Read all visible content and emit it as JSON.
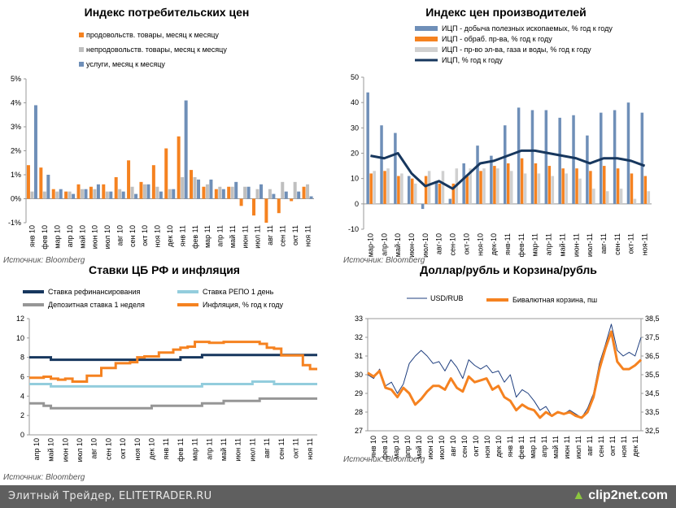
{
  "footer": {
    "left_text": "Элитный Трейдер, ELITETRADER.RU",
    "logo_text": "clip2net.com",
    "logo_icon": "green-up-arrow-icon"
  },
  "colors": {
    "blue": "#4f81bd",
    "steel": "#6f8fb8",
    "orange": "#f58220",
    "gray": "#bfbfbf",
    "navy": "#17375e",
    "lightblue": "#93cddd",
    "darkgray": "#969696",
    "navyline": "#1f3f7f"
  },
  "chart_data": [
    {
      "id": "cpi",
      "type": "bar",
      "title": "Индекс потребительских цен",
      "source": "Источник: Bloomberg",
      "yunit": "%",
      "ylim": [
        -1,
        5
      ],
      "yticks": [
        "-1%",
        "0%",
        "1%",
        "2%",
        "3%",
        "4%",
        "5%"
      ],
      "legend_position": "top-right",
      "categories": [
        "янв 10",
        "фев 10",
        "мар 10",
        "апр 10",
        "май 10",
        "июн 10",
        "июл 10",
        "авг 10",
        "сен 10",
        "окт 10",
        "ноя 10",
        "дек 10",
        "янв 11",
        "фев 11",
        "мар 11",
        "апр 11",
        "май 11",
        "июн 11",
        "июл 11",
        "авг 11",
        "сен 11",
        "окт 11",
        "ноя 11"
      ],
      "xticklabels": [
        "янв 10",
        "фев 10",
        "мар 10",
        "апр 10",
        "май 10",
        "июн 10",
        "июл 10",
        "авг 10",
        "сен 10",
        "окт 10",
        "ноя 10",
        "дек 10",
        "янв 11",
        "фев 11",
        "мар 11",
        "апр 11",
        "май 11",
        "июн 11",
        "июл 11",
        "авг 11",
        "сен 11",
        "окт 11",
        "ноя 11"
      ],
      "series": [
        {
          "name": "продовольств. товары, месяц к месяцу",
          "color": "#f58220",
          "values": [
            1.4,
            1.3,
            0.4,
            0.3,
            0.6,
            0.5,
            0.6,
            0.9,
            1.6,
            0.7,
            1.4,
            2.1,
            2.6,
            1.2,
            0.5,
            0.4,
            0.5,
            -0.3,
            -0.7,
            -1.0,
            -0.6,
            -0.1,
            0.5
          ]
        },
        {
          "name": "непродовольств. товары, месяц к месяцу",
          "color": "#bfbfbf",
          "values": [
            0.3,
            0.3,
            0.3,
            0.3,
            0.4,
            0.4,
            0.3,
            0.4,
            0.5,
            0.6,
            0.5,
            0.4,
            0.9,
            0.9,
            0.6,
            0.5,
            0.5,
            0.5,
            0.4,
            0.4,
            0.7,
            0.7,
            0.6
          ]
        },
        {
          "name": "услуги,  месяц к месяцу",
          "color": "#6f8fb8",
          "values": [
            3.9,
            1.0,
            0.4,
            0.2,
            0.4,
            0.6,
            0.3,
            0.3,
            0.2,
            0.6,
            0.3,
            0.4,
            4.1,
            0.8,
            0.8,
            0.4,
            0.7,
            0.5,
            0.6,
            0.2,
            0.3,
            0.3,
            0.1
          ]
        }
      ]
    },
    {
      "id": "ppi",
      "type": "bar",
      "title": "Индекс цен производителей",
      "source": "Источник: Bloomberg",
      "ylim": [
        -10,
        50
      ],
      "yticks": [
        "-10",
        "0",
        "10",
        "20",
        "30",
        "40",
        "50"
      ],
      "legend_position": "top",
      "categories": [
        "мар-10",
        "апр-10",
        "май-10",
        "июн-10",
        "июл-10",
        "авг-10",
        "сен-10",
        "окт-10",
        "ноя-10",
        "дек-10",
        "янв-11",
        "фев-11",
        "мар-11",
        "апр-11",
        "май-11",
        "июн-11",
        "июл-11",
        "авг-11",
        "сен-11",
        "окт-11",
        "ноя-11"
      ],
      "xticklabels": [
        "мар-10",
        "апр-10",
        "май-10",
        "июн-10",
        "июл-10",
        "авг-10",
        "сен-10",
        "окт-10",
        "ноя-10",
        "дек-10",
        "янв-11",
        "фев-11",
        "мар-11",
        "апр-11",
        "май-11",
        "июн-11",
        "июл-11",
        "авг-11",
        "сен-11",
        "окт-11",
        "ноя-11"
      ],
      "series": [
        {
          "name": "ИЦП - добыча полезных ископаемых, % год к году",
          "color": "#6f8fb8",
          "kind": "bar",
          "values": [
            44,
            31,
            28,
            11,
            -2,
            9,
            2,
            16,
            23,
            19,
            31,
            38,
            37,
            37,
            34,
            35,
            27,
            36,
            37,
            40,
            36
          ]
        },
        {
          "name": "ИЦП - обраб. пр-ва, % год к году",
          "color": "#f58220",
          "kind": "bar",
          "values": [
            12,
            13,
            11,
            10,
            11,
            8,
            8,
            11,
            13,
            15,
            16,
            18,
            16,
            15,
            14,
            14,
            13,
            15,
            14,
            12,
            11
          ]
        },
        {
          "name": "ИЦП - пр-во эл-ва, газа и воды, % год к году",
          "color": "#d0d0d0",
          "kind": "bar",
          "values": [
            13,
            14,
            12,
            8,
            13,
            13,
            14,
            14,
            14,
            14,
            13,
            12,
            12,
            11,
            12,
            10,
            6,
            5,
            6,
            2,
            5
          ]
        },
        {
          "name": "ИЦП, % год к году",
          "color": "#17375e",
          "kind": "line",
          "values": [
            19,
            18,
            20,
            12,
            7,
            9,
            6,
            11,
            16,
            17,
            19,
            21,
            21,
            20,
            19,
            18,
            16,
            18,
            18,
            17,
            15
          ]
        }
      ]
    },
    {
      "id": "rates",
      "type": "line",
      "title": "Ставки ЦБ РФ и инфляция",
      "source": "Источник: Bloomberg",
      "ylim": [
        0,
        12
      ],
      "yticks": [
        "0",
        "2",
        "4",
        "6",
        "8",
        "10",
        "12"
      ],
      "legend_position": "top",
      "x": [
        0,
        0.5,
        1,
        1.5,
        2,
        2.5,
        3,
        3.5,
        4,
        4.5,
        5,
        5.5,
        6,
        6.5,
        7,
        7.5,
        8,
        8.5,
        9,
        9.5,
        10,
        10.5,
        11,
        11.5,
        12,
        12.5,
        13,
        13.5,
        14,
        14.5,
        15,
        15.5,
        16,
        16.5,
        17,
        17.5,
        18,
        18.5,
        19,
        19.5,
        20
      ],
      "xticklabels": [
        "апр 10",
        "май 10",
        "июн 10",
        "июл 10",
        "авг 10",
        "сен 10",
        "окт 10",
        "ноя 10",
        "дек 10",
        "янв 11",
        "фев 11",
        "мар 11",
        "апр 11",
        "май 11",
        "июн 11",
        "июл 11",
        "авг 11",
        "сен 11",
        "окт 11",
        "ноя 11"
      ],
      "series": [
        {
          "name": "Ставка рефинансирования",
          "color": "#17375e",
          "values": [
            8.0,
            8.0,
            8.0,
            7.75,
            7.75,
            7.75,
            7.75,
            7.75,
            7.75,
            7.75,
            7.75,
            7.75,
            7.75,
            7.75,
            7.75,
            7.75,
            7.75,
            7.75,
            7.75,
            7.75,
            7.75,
            8.0,
            8.0,
            8.0,
            8.25,
            8.25,
            8.25,
            8.25,
            8.25,
            8.25,
            8.25,
            8.25,
            8.25,
            8.25,
            8.25,
            8.25,
            8.25,
            8.25,
            8.25,
            8.25,
            8.25
          ]
        },
        {
          "name": "Ставка РЕПО 1 день",
          "color": "#93cddd",
          "values": [
            5.25,
            5.25,
            5.25,
            5.0,
            5.0,
            5.0,
            5.0,
            5.0,
            5.0,
            5.0,
            5.0,
            5.0,
            5.0,
            5.0,
            5.0,
            5.0,
            5.0,
            5.0,
            5.0,
            5.0,
            5.0,
            5.0,
            5.0,
            5.0,
            5.25,
            5.25,
            5.25,
            5.25,
            5.25,
            5.25,
            5.25,
            5.5,
            5.5,
            5.5,
            5.25,
            5.25,
            5.25,
            5.25,
            5.25,
            5.25,
            5.25
          ]
        },
        {
          "name": "Депозитная ставка 1 неделя",
          "color": "#969696",
          "values": [
            3.25,
            3.25,
            3.0,
            2.75,
            2.75,
            2.75,
            2.75,
            2.75,
            2.75,
            2.75,
            2.75,
            2.75,
            2.75,
            2.75,
            2.75,
            2.75,
            2.75,
            3.0,
            3.0,
            3.0,
            3.0,
            3.0,
            3.0,
            3.0,
            3.25,
            3.25,
            3.25,
            3.5,
            3.5,
            3.5,
            3.5,
            3.5,
            3.75,
            3.75,
            3.75,
            3.75,
            3.75,
            3.75,
            3.75,
            3.75,
            3.75
          ]
        },
        {
          "name": "Инфляция, % год к году",
          "color": "#f58220",
          "values": [
            5.9,
            5.9,
            6.0,
            5.8,
            5.7,
            5.8,
            5.5,
            5.5,
            6.1,
            6.1,
            6.9,
            6.9,
            7.4,
            7.4,
            7.5,
            8.0,
            8.1,
            8.1,
            8.5,
            8.5,
            8.8,
            9.0,
            9.1,
            9.6,
            9.6,
            9.5,
            9.5,
            9.6,
            9.6,
            9.6,
            9.6,
            9.6,
            9.4,
            9.0,
            8.9,
            8.2,
            8.2,
            8.2,
            7.2,
            6.8,
            6.8
          ]
        }
      ]
    },
    {
      "id": "usdrub",
      "type": "line",
      "title": "Доллар/рубль и Корзина/рубль",
      "source": "Источник: Bloomberg",
      "ylim_left": [
        27,
        33
      ],
      "ylim_right": [
        32.5,
        38.5
      ],
      "yticks_left": [
        "27",
        "28",
        "29",
        "30",
        "31",
        "32",
        "33"
      ],
      "yticks_right": [
        "32,5",
        "33,5",
        "34,5",
        "35,5",
        "36,5",
        "37,5",
        "38,5"
      ],
      "legend_position": "top",
      "x": [
        0,
        0.5,
        1,
        1.5,
        2,
        2.5,
        3,
        3.5,
        4,
        4.5,
        5,
        5.5,
        6,
        6.5,
        7,
        7.5,
        8,
        8.5,
        9,
        9.5,
        10,
        10.5,
        11,
        11.5,
        12,
        12.5,
        13,
        13.5,
        14,
        14.5,
        15,
        15.5,
        16,
        16.5,
        17,
        17.5,
        18,
        18.5,
        19,
        19.5,
        20,
        20.5,
        21,
        21.5,
        22,
        22.5,
        23
      ],
      "xticklabels": [
        "янв 10",
        "фев 10",
        "мар 10",
        "апр 10",
        "май 10",
        "июн 10",
        "июл 10",
        "авг 10",
        "сен 10",
        "окт 10",
        "ноя 10",
        "дек 10",
        "янв 11",
        "фев 11",
        "мар 11",
        "апр 11",
        "май 11",
        "июн 11",
        "июл 11",
        "авг 11",
        "сен 11",
        "окт 11",
        "ноя 11",
        "дек 11"
      ],
      "series": [
        {
          "name": "USD/RUB",
          "color": "#1f3f7f",
          "axis": "left",
          "values": [
            30.0,
            29.8,
            30.3,
            29.4,
            29.6,
            29.0,
            29.5,
            30.6,
            31.0,
            31.3,
            31.0,
            30.6,
            30.7,
            30.2,
            30.8,
            30.4,
            29.8,
            30.8,
            30.5,
            30.3,
            30.5,
            30.1,
            30.2,
            29.6,
            30.0,
            28.8,
            29.2,
            29.0,
            28.6,
            28.1,
            28.3,
            27.8,
            28.0,
            27.9,
            28.1,
            27.9,
            27.7,
            28.2,
            29.0,
            30.6,
            31.6,
            32.7,
            31.3,
            31.0,
            31.2,
            31.0,
            32.0
          ]
        },
        {
          "name": "Бивалютная корзина,  пш",
          "color": "#f58220",
          "axis": "right",
          "values": [
            35.6,
            35.4,
            35.7,
            34.8,
            34.7,
            34.3,
            34.8,
            34.5,
            33.9,
            34.2,
            34.6,
            34.9,
            34.9,
            34.7,
            35.3,
            34.8,
            34.6,
            35.4,
            35.1,
            35.2,
            35.3,
            34.7,
            34.9,
            34.3,
            34.1,
            33.6,
            33.9,
            33.7,
            33.6,
            33.2,
            33.5,
            33.3,
            33.5,
            33.4,
            33.5,
            33.3,
            33.2,
            33.5,
            34.3,
            35.8,
            36.9,
            37.8,
            36.2,
            35.8,
            35.8,
            36.0,
            36.3
          ]
        }
      ]
    }
  ]
}
